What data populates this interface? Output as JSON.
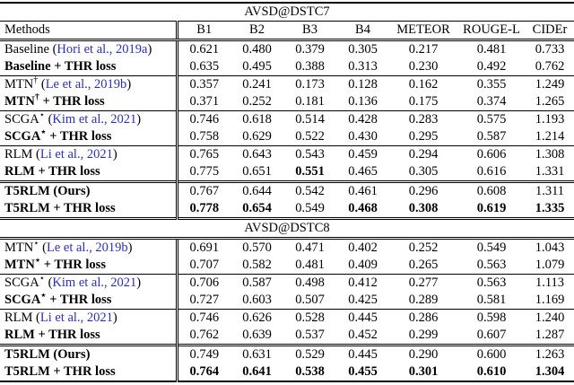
{
  "table": {
    "citation_color": "#2b2fb8",
    "columns": [
      "Methods",
      "B1",
      "B2",
      "B3",
      "B4",
      "METEOR",
      "ROUGE-L",
      "CIDEr"
    ],
    "sections": [
      {
        "title": "AVSD@DSTC7",
        "show_header": true,
        "rows": [
          {
            "name": "Baseline",
            "sup": "",
            "suffix": "",
            "citation": "Hori et al., 2019a",
            "bold_method": false,
            "sep": "none",
            "values": [
              "0.621",
              "0.480",
              "0.379",
              "0.305",
              "0.217",
              "0.481",
              "0.733"
            ],
            "bold_values": [
              false,
              false,
              false,
              false,
              false,
              false,
              false
            ]
          },
          {
            "name": "Baseline",
            "sup": "",
            "suffix": " + THR loss",
            "citation": "",
            "bold_method": true,
            "sep": "none",
            "values": [
              "0.635",
              "0.495",
              "0.388",
              "0.313",
              "0.230",
              "0.492",
              "0.762"
            ],
            "bold_values": [
              false,
              false,
              false,
              false,
              false,
              false,
              false
            ]
          },
          {
            "name": "MTN",
            "sup": "†",
            "suffix": "",
            "citation": "Le et al., 2019b",
            "bold_method": false,
            "sep": "single",
            "values": [
              "0.357",
              "0.241",
              "0.173",
              "0.128",
              "0.162",
              "0.355",
              "1.249"
            ],
            "bold_values": [
              false,
              false,
              false,
              false,
              false,
              false,
              false
            ]
          },
          {
            "name": "MTN",
            "sup": "†",
            "suffix": " + THR loss",
            "citation": "",
            "bold_method": true,
            "sep": "none",
            "values": [
              "0.371",
              "0.252",
              "0.181",
              "0.136",
              "0.175",
              "0.374",
              "1.265"
            ],
            "bold_values": [
              false,
              false,
              false,
              false,
              false,
              false,
              false
            ]
          },
          {
            "name": "SCGA",
            "sup": "⋆",
            "suffix": "",
            "citation": "Kim et al., 2021",
            "bold_method": false,
            "sep": "single",
            "values": [
              "0.746",
              "0.618",
              "0.514",
              "0.428",
              "0.283",
              "0.575",
              "1.193"
            ],
            "bold_values": [
              false,
              false,
              false,
              false,
              false,
              false,
              false
            ]
          },
          {
            "name": "SCGA",
            "sup": "⋆",
            "suffix": " + THR loss",
            "citation": "",
            "bold_method": true,
            "sep": "none",
            "values": [
              "0.758",
              "0.629",
              "0.522",
              "0.430",
              "0.295",
              "0.587",
              "1.214"
            ],
            "bold_values": [
              false,
              false,
              false,
              false,
              false,
              false,
              false
            ]
          },
          {
            "name": "RLM",
            "sup": "",
            "suffix": "",
            "citation": "Li et al., 2021",
            "bold_method": false,
            "sep": "single",
            "values": [
              "0.765",
              "0.643",
              "0.543",
              "0.459",
              "0.294",
              "0.606",
              "1.308"
            ],
            "bold_values": [
              false,
              false,
              false,
              false,
              false,
              false,
              false
            ]
          },
          {
            "name": "RLM",
            "sup": "",
            "suffix": " + THR loss",
            "citation": "",
            "bold_method": true,
            "sep": "none",
            "values": [
              "0.775",
              "0.651",
              "0.551",
              "0.465",
              "0.305",
              "0.616",
              "1.331"
            ],
            "bold_values": [
              false,
              false,
              true,
              false,
              false,
              false,
              false
            ]
          },
          {
            "name": "T5RLM",
            "sup": "",
            "suffix": " (Ours)",
            "citation": "",
            "bold_method": true,
            "sep": "double",
            "values": [
              "0.767",
              "0.644",
              "0.542",
              "0.461",
              "0.296",
              "0.608",
              "1.311"
            ],
            "bold_values": [
              false,
              false,
              false,
              false,
              false,
              false,
              false
            ]
          },
          {
            "name": "T5RLM",
            "sup": "",
            "suffix": " + THR loss",
            "citation": "",
            "bold_method": true,
            "sep": "none",
            "values": [
              "0.778",
              "0.654",
              "0.549",
              "0.468",
              "0.308",
              "0.619",
              "1.335"
            ],
            "bold_values": [
              true,
              true,
              false,
              true,
              true,
              true,
              true
            ]
          }
        ]
      },
      {
        "title": "AVSD@DSTC8",
        "show_header": false,
        "rows": [
          {
            "name": "MTN",
            "sup": "⋆",
            "suffix": "",
            "citation": "Le et al., 2019b",
            "bold_method": false,
            "sep": "none",
            "values": [
              "0.691",
              "0.570",
              "0.471",
              "0.402",
              "0.252",
              "0.549",
              "1.043"
            ],
            "bold_values": [
              false,
              false,
              false,
              false,
              false,
              false,
              false
            ]
          },
          {
            "name": "MTN",
            "sup": "⋆",
            "suffix": " + THR loss",
            "citation": "",
            "bold_method": true,
            "sep": "none",
            "values": [
              "0.707",
              "0.582",
              "0.481",
              "0.409",
              "0.265",
              "0.563",
              "1.079"
            ],
            "bold_values": [
              false,
              false,
              false,
              false,
              false,
              false,
              false
            ]
          },
          {
            "name": "SCGA",
            "sup": "⋆",
            "suffix": "",
            "citation": "Kim et al., 2021",
            "bold_method": false,
            "sep": "single",
            "values": [
              "0.706",
              "0.587",
              "0.498",
              "0.412",
              "0.277",
              "0.563",
              "1.113"
            ],
            "bold_values": [
              false,
              false,
              false,
              false,
              false,
              false,
              false
            ]
          },
          {
            "name": "SCGA",
            "sup": "⋆",
            "suffix": " + THR loss",
            "citation": "",
            "bold_method": true,
            "sep": "none",
            "values": [
              "0.727",
              "0.603",
              "0.507",
              "0.425",
              "0.289",
              "0.581",
              "1.169"
            ],
            "bold_values": [
              false,
              false,
              false,
              false,
              false,
              false,
              false
            ]
          },
          {
            "name": "RLM",
            "sup": "",
            "suffix": "",
            "citation": "Li et al., 2021",
            "bold_method": false,
            "sep": "single",
            "values": [
              "0.746",
              "0.626",
              "0.528",
              "0.445",
              "0.286",
              "0.598",
              "1.240"
            ],
            "bold_values": [
              false,
              false,
              false,
              false,
              false,
              false,
              false
            ]
          },
          {
            "name": "RLM",
            "sup": "",
            "suffix": " + THR loss",
            "citation": "",
            "bold_method": true,
            "sep": "none",
            "values": [
              "0.762",
              "0.639",
              "0.537",
              "0.452",
              "0.299",
              "0.607",
              "1.287"
            ],
            "bold_values": [
              false,
              false,
              false,
              false,
              false,
              false,
              false
            ]
          },
          {
            "name": "T5RLM",
            "sup": "",
            "suffix": " (Ours)",
            "citation": "",
            "bold_method": true,
            "sep": "double",
            "values": [
              "0.749",
              "0.631",
              "0.529",
              "0.445",
              "0.290",
              "0.600",
              "1.263"
            ],
            "bold_values": [
              false,
              false,
              false,
              false,
              false,
              false,
              false
            ]
          },
          {
            "name": "T5RLM",
            "sup": "",
            "suffix": " + THR loss",
            "citation": "",
            "bold_method": true,
            "sep": "none",
            "values": [
              "0.764",
              "0.641",
              "0.538",
              "0.455",
              "0.301",
              "0.610",
              "1.304"
            ],
            "bold_values": [
              true,
              true,
              true,
              true,
              true,
              true,
              true
            ]
          }
        ]
      }
    ]
  }
}
